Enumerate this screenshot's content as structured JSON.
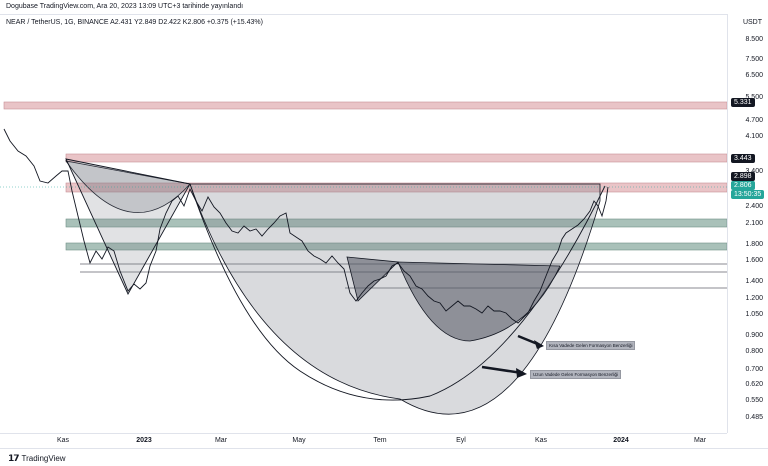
{
  "header": {
    "credit": "Dogubase TradingView.com, Ara 20, 2023 13:09 UTC+3 tarihinde yayınlandı",
    "symbol_line": "NEAR / TetherUS, 1G, BINANCE  A2.431  Y2.849  D2.422  K2.806  +0.375 (+15.43%)",
    "currency": "USDT"
  },
  "price_axis": {
    "ticks": [
      "8.500",
      "7.500",
      "6.500",
      "5.500",
      "4.700",
      "4.100",
      "3.400",
      "2.400",
      "2.100",
      "1.800",
      "1.600",
      "1.400",
      "1.200",
      "1.050",
      "0.900",
      "0.800",
      "0.700",
      "0.620",
      "0.550",
      "0.485"
    ],
    "tags": [
      {
        "label": "5.331",
        "color": "#131722"
      },
      {
        "label": "3.443",
        "color": "#131722"
      },
      {
        "label": "2.898",
        "color": "#131722"
      },
      {
        "label": "2.806",
        "color": "#26a69a"
      },
      {
        "label": "13:50:35",
        "color": "#26a69a"
      }
    ]
  },
  "time_axis": {
    "labels": [
      {
        "text": "Kas",
        "bold": false
      },
      {
        "text": "2023",
        "bold": true
      },
      {
        "text": "Mar",
        "bold": false
      },
      {
        "text": "May",
        "bold": false
      },
      {
        "text": "Tem",
        "bold": false
      },
      {
        "text": "Eyl",
        "bold": false
      },
      {
        "text": "Kas",
        "bold": false
      },
      {
        "text": "2024",
        "bold": true
      },
      {
        "text": "Mar",
        "bold": false
      }
    ]
  },
  "annotations": {
    "short_term": "Kısa Vadede Gelen Formasyon Benzerliği",
    "long_term": "Uzun Vadede Gelen Formasyon Benzerliği"
  },
  "footer": {
    "brand": "TradingView"
  },
  "colors": {
    "up": "#26a69a",
    "down": "#ef5350",
    "resistance_zone": "#d9a4a8",
    "support_zone": "#a6bbb3"
  }
}
